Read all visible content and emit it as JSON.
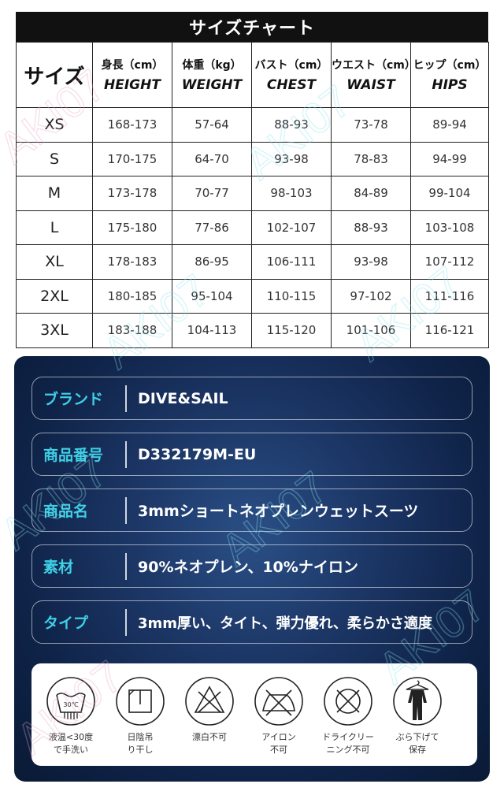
{
  "chart": {
    "title": "サイズチャート",
    "size_header": "サイズ",
    "columns": [
      {
        "jp": "身長（cm）",
        "en": "HEIGHT"
      },
      {
        "jp": "体重（kg）",
        "en": "WEIGHT"
      },
      {
        "jp": "バスト（cm）",
        "en": "CHEST"
      },
      {
        "jp": "ウエスト（cm）",
        "en": "WAIST"
      },
      {
        "jp": "ヒップ（cm）",
        "en": "HIPS"
      }
    ],
    "rows": [
      {
        "size": "XS",
        "values": [
          "168-173",
          "57-64",
          "88-93",
          "73-78",
          "89-94"
        ]
      },
      {
        "size": "S",
        "values": [
          "170-175",
          "64-70",
          "93-98",
          "78-83",
          "94-99"
        ]
      },
      {
        "size": "M",
        "values": [
          "173-178",
          "70-77",
          "98-103",
          "84-89",
          "99-104"
        ]
      },
      {
        "size": "L",
        "values": [
          "175-180",
          "77-86",
          "102-107",
          "88-93",
          "103-108"
        ]
      },
      {
        "size": "XL",
        "values": [
          "178-183",
          "86-95",
          "106-111",
          "93-98",
          "107-112"
        ]
      },
      {
        "size": "2XL",
        "values": [
          "180-185",
          "95-104",
          "110-115",
          "97-102",
          "111-116"
        ]
      },
      {
        "size": "3XL",
        "values": [
          "183-188",
          "104-113",
          "115-120",
          "101-106",
          "116-121"
        ]
      }
    ]
  },
  "specs": [
    {
      "label": "ブランド",
      "value": "DIVE&SAIL"
    },
    {
      "label": "商品番号",
      "value": "D332179M-EU"
    },
    {
      "label": "商品名",
      "value": "3mmショートネオプレンウェットスーツ"
    },
    {
      "label": "素材",
      "value": "90%ネオプレン、10%ナイロン"
    },
    {
      "label": "タイプ",
      "value": "3mm厚い、タイト、弾力優れ、柔らかさ適度"
    }
  ],
  "care": [
    {
      "icon": "wash-30-icon",
      "line1": "液温<30度",
      "line2": "で手洗い",
      "temp": "30℃"
    },
    {
      "icon": "shade-dry-icon",
      "line1": "日陰吊",
      "line2": "り干し"
    },
    {
      "icon": "no-bleach-icon",
      "line1": "漂白不可",
      "line2": ""
    },
    {
      "icon": "no-iron-icon",
      "line1": "アイロン",
      "line2": "不可"
    },
    {
      "icon": "no-dry-clean-icon",
      "line1": "ドライクリー",
      "line2": "ニング不可"
    },
    {
      "icon": "hang-dry-icon",
      "line1": "ぶら下げて",
      "line2": "保存"
    }
  ],
  "watermark": "AKI07",
  "colors": {
    "accent": "#3fd0e6",
    "panel": "#15305c",
    "header": "#111111"
  }
}
